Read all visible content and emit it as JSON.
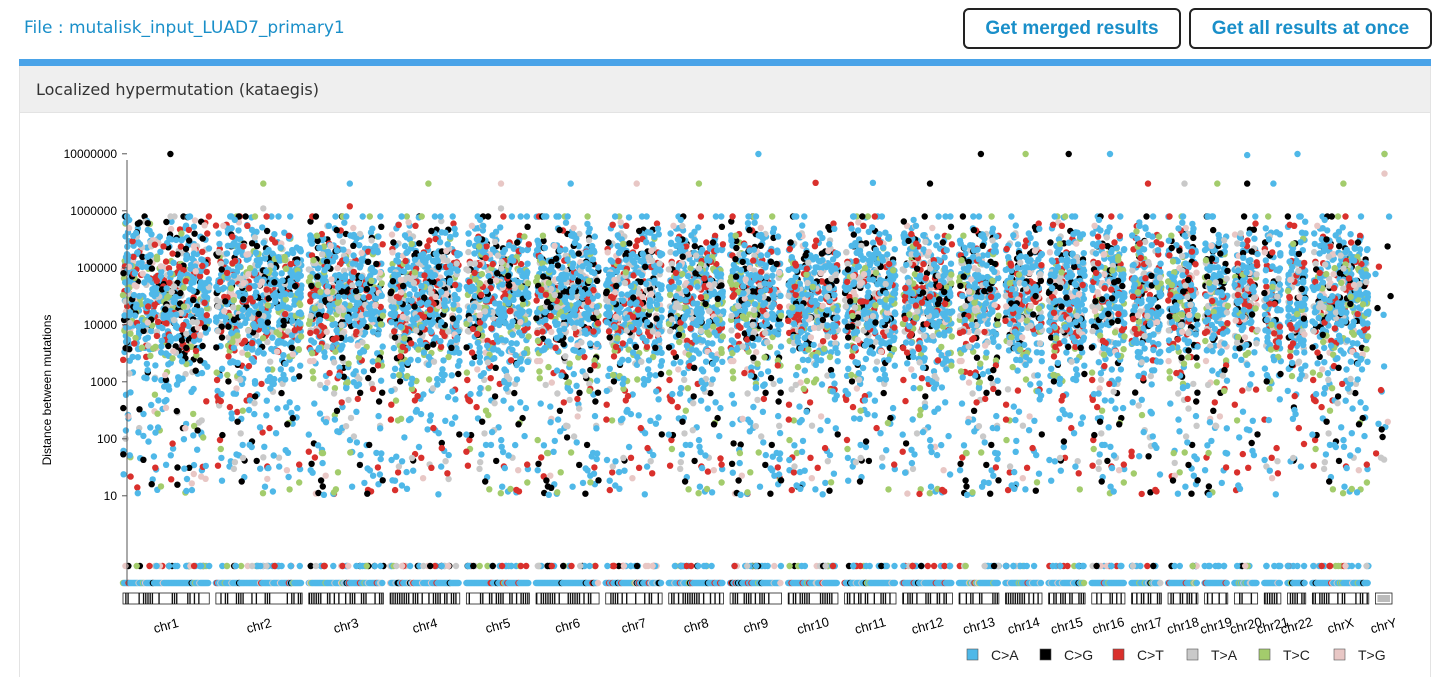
{
  "header": {
    "file_label": "File : mutalisk_input_LUAD7_primary1",
    "merged_button": "Get merged results",
    "all_button": "Get all results at once",
    "accent_color": "#4aa3e8"
  },
  "panel": {
    "title": "Localized hypermutation (kataegis)"
  },
  "chart_data": {
    "type": "scatter",
    "title": "",
    "xlabel": "",
    "ylabel": "Distance between mutations",
    "y_scale": "log",
    "y_ticks": [
      {
        "value": 10,
        "label": "10"
      },
      {
        "value": 100,
        "label": "100"
      },
      {
        "value": 1000,
        "label": "1000"
      },
      {
        "value": 10000,
        "label": "10000"
      },
      {
        "value": 100000,
        "label": "100000"
      },
      {
        "value": 1000000,
        "label": "1000000"
      },
      {
        "value": 10000000,
        "label": "10000000"
      }
    ],
    "categories": [
      "chr1",
      "chr2",
      "chr3",
      "chr4",
      "chr5",
      "chr6",
      "chr7",
      "chr8",
      "chr9",
      "chr10",
      "chr11",
      "chr12",
      "chr13",
      "chr14",
      "chr15",
      "chr16",
      "chr17",
      "chr18",
      "chr19",
      "chr20",
      "chr21",
      "chr22",
      "chrX",
      "chrY"
    ],
    "series": [
      {
        "name": "C>A",
        "color": "#4fb8e8"
      },
      {
        "name": "C>G",
        "color": "#000000"
      },
      {
        "name": "C>T",
        "color": "#d9302c"
      },
      {
        "name": "T>A",
        "color": "#c9c9c9"
      },
      {
        "name": "T>C",
        "color": "#a3cc6c"
      },
      {
        "name": "T>G",
        "color": "#e8c7c5"
      }
    ],
    "outliers": [
      {
        "chr": "chr1",
        "series": "C>G",
        "y": 20000000
      },
      {
        "chr": "chr2",
        "series": "T>C",
        "y": 3000000
      },
      {
        "chr": "chr2",
        "series": "T>A",
        "y": 1100000
      },
      {
        "chr": "chr3",
        "series": "C>A",
        "y": 3000000
      },
      {
        "chr": "chr3",
        "series": "C>T",
        "y": 1200000
      },
      {
        "chr": "chr4",
        "series": "T>C",
        "y": 3000000
      },
      {
        "chr": "chr5",
        "series": "T>G",
        "y": 3000000
      },
      {
        "chr": "chr5",
        "series": "T>A",
        "y": 1100000
      },
      {
        "chr": "chr6",
        "series": "C>A",
        "y": 3000000
      },
      {
        "chr": "chr7",
        "series": "T>G",
        "y": 3000000
      },
      {
        "chr": "chr8",
        "series": "T>C",
        "y": 3000000
      },
      {
        "chr": "chr9",
        "series": "C>A",
        "y": 17000000
      },
      {
        "chr": "chr10",
        "series": "C>T",
        "y": 3100000
      },
      {
        "chr": "chr11",
        "series": "C>A",
        "y": 3100000
      },
      {
        "chr": "chr12",
        "series": "C>G",
        "y": 3000000
      },
      {
        "chr": "chr13",
        "series": "C>G",
        "y": 18000000
      },
      {
        "chr": "chr14",
        "series": "T>C",
        "y": 18000000
      },
      {
        "chr": "chr15",
        "series": "C>G",
        "y": 19000000
      },
      {
        "chr": "chr16",
        "series": "C>A",
        "y": 11000000
      },
      {
        "chr": "chr17",
        "series": "C>T",
        "y": 3000000
      },
      {
        "chr": "chr18",
        "series": "T>A",
        "y": 3000000
      },
      {
        "chr": "chr19",
        "series": "T>C",
        "y": 3000000
      },
      {
        "chr": "chr20",
        "series": "C>G",
        "y": 3000000
      },
      {
        "chr": "chr20",
        "series": "C>A",
        "y": 9500000
      },
      {
        "chr": "chr21",
        "series": "C>A",
        "y": 3000000
      },
      {
        "chr": "chr22",
        "series": "C>A",
        "y": 16000000
      },
      {
        "chr": "chrX",
        "series": "T>C",
        "y": 3000000
      },
      {
        "chr": "chrY",
        "series": "C>A",
        "y": 30000000
      },
      {
        "chr": "chrY",
        "series": "T>C",
        "y": 12000000
      },
      {
        "chr": "chrY",
        "series": "T>G",
        "y": 4500000
      }
    ],
    "grid": false,
    "legend_position": "bottom-right"
  }
}
